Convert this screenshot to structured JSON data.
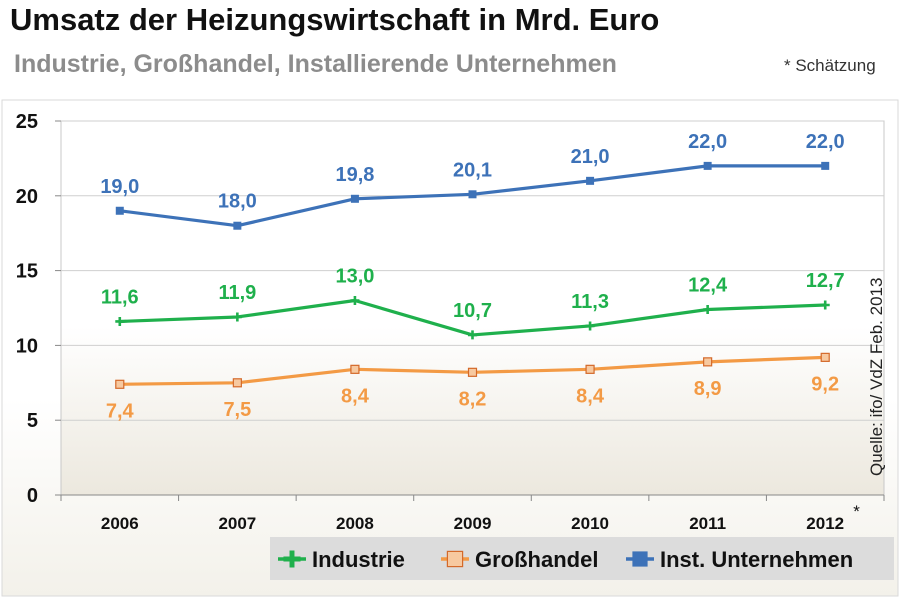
{
  "header": {
    "title": "Umsatz der Heizungswirtschaft in Mrd. Euro",
    "subtitle": "Industrie, Großhandel, Installierende Unternehmen",
    "note": "* Schätzung"
  },
  "source": "Quelle: ifo/ VdZ Feb. 2013",
  "chart_data": {
    "type": "line",
    "categories": [
      "2006",
      "2007",
      "2008",
      "2009",
      "2010",
      "2011",
      "2012"
    ],
    "category_marker": {
      "2012": "*"
    },
    "ylim": [
      0,
      25
    ],
    "yticks": [
      0,
      5,
      10,
      15,
      20,
      25
    ],
    "grid": true,
    "legend_position": "bottom-right",
    "series": [
      {
        "name": "Industrie",
        "color": "#1fb04c",
        "marker": "plus",
        "label_position": "above",
        "values": [
          11.6,
          11.9,
          13.0,
          10.7,
          11.3,
          12.4,
          12.7
        ],
        "labels": [
          "11,6",
          "11,9",
          "13,0",
          "10,7",
          "11,3",
          "12,4",
          "12,7"
        ]
      },
      {
        "name": "Großhandel",
        "color": "#f39a45",
        "marker": "square-open",
        "label_position": "below",
        "values": [
          7.4,
          7.5,
          8.4,
          8.2,
          8.4,
          8.9,
          9.2
        ],
        "labels": [
          "7,4",
          "7,5",
          "8,4",
          "8,2",
          "8,4",
          "8,9",
          "9,2"
        ]
      },
      {
        "name": "Inst. Unternehmen",
        "color": "#3d72b8",
        "marker": "square",
        "label_position": "above",
        "values": [
          19.0,
          18.0,
          19.8,
          20.1,
          21.0,
          22.0,
          22.0
        ],
        "labels": [
          "19,0",
          "18,0",
          "19,8",
          "20,1",
          "21,0",
          "22,0",
          "22,0"
        ]
      }
    ]
  }
}
